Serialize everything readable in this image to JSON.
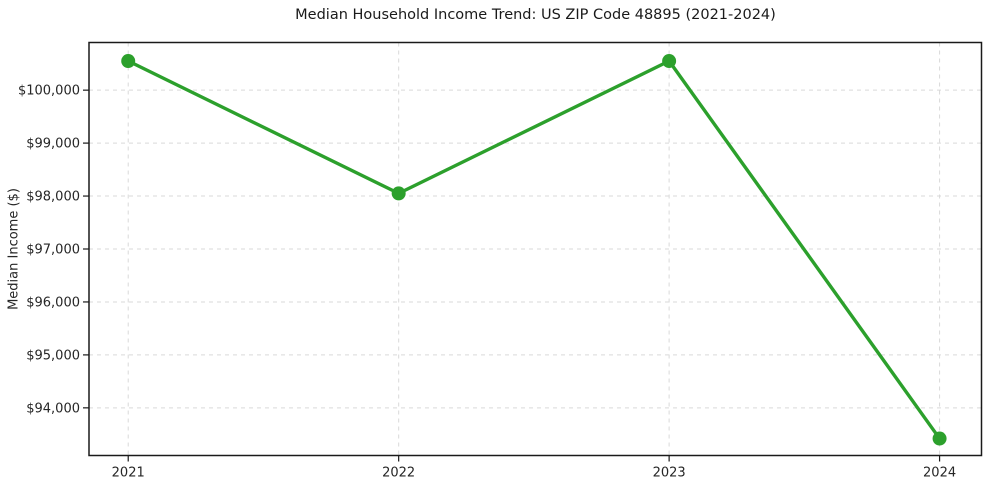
{
  "chart": {
    "title": "Median Household Income Trend: US ZIP Code 48895 (2021-2024)",
    "ylabel": "Median Income ($)"
  },
  "chart_data": {
    "type": "line",
    "title": "Median Household Income Trend: US ZIP Code 48895 (2021-2024)",
    "xlabel": "",
    "ylabel": "Median Income ($)",
    "x": [
      2021,
      2022,
      2023,
      2024
    ],
    "x_tick_labels": [
      "2021",
      "2022",
      "2023",
      "2024"
    ],
    "series": [
      {
        "name": "Median household income",
        "values": [
          100550,
          98050,
          100550,
          93420
        ]
      }
    ],
    "y_ticks": [
      94000,
      95000,
      96000,
      97000,
      98000,
      99000,
      100000
    ],
    "y_tick_labels": [
      "$94,000",
      "$95,000",
      "$96,000",
      "$97,000",
      "$98,000",
      "$99,000",
      "$100,000"
    ],
    "xlim": [
      2020.855,
      2024.155
    ],
    "ylim": [
      93100,
      100900
    ],
    "grid": true,
    "legend": false,
    "style": {
      "line_color": "#2ca02c",
      "marker_color": "#2ca02c",
      "marker_radius": 7,
      "line_width": 3.4,
      "grid_color": "#d9d9d9",
      "axis_color": "#1a1a1a",
      "tick_text_color": "#262626",
      "background": "#ffffff"
    }
  }
}
